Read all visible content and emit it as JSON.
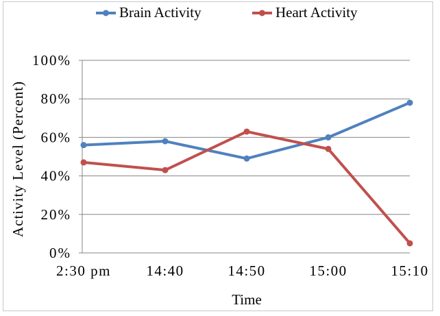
{
  "chart_data": {
    "type": "line",
    "categories": [
      "2:30 pm",
      "14:40",
      "14:50",
      "15:00",
      "15:10"
    ],
    "series": [
      {
        "name": "Brain Activity",
        "color": "#4f81bd",
        "values": [
          56,
          58,
          49,
          60,
          78
        ]
      },
      {
        "name": "Heart Activity",
        "color": "#c0504d",
        "values": [
          47,
          43,
          63,
          54,
          5
        ]
      }
    ],
    "y_ticks": [
      "0%",
      "20%",
      "40%",
      "60%",
      "80%",
      "100%"
    ],
    "ylim": [
      0,
      100
    ],
    "xlabel": "Time",
    "ylabel": "Activity Level (Percent)",
    "title": "",
    "grid": "horizontal",
    "legend_position": "top"
  }
}
